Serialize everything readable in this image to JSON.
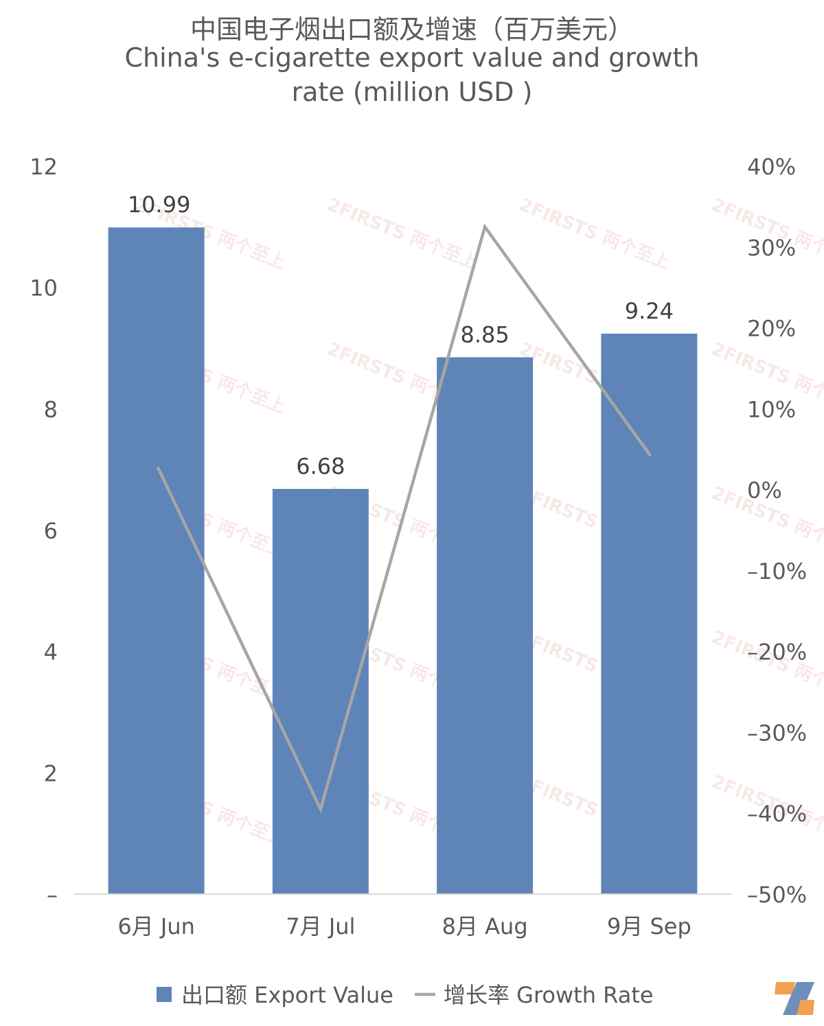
{
  "title_lines": [
    "中国电子烟出口额及增速（百万美元）",
    "China's e-cigarette export value and growth",
    "rate (million USD )"
  ],
  "watermark_text": "2FIRSTS 两个至上",
  "colors": {
    "bar": "#5f84b7",
    "line": "#a6a6a6",
    "text": "#595959",
    "axis": "#d9d9d9"
  },
  "chart_data": {
    "type": "bar+line",
    "categories": [
      "6月 Jun",
      "7月 Jul",
      "8月 Aug",
      "9月 Sep"
    ],
    "series": [
      {
        "name": "出口额 Export Value",
        "type": "bar",
        "axis": "left",
        "values": [
          10.99,
          6.68,
          8.85,
          9.24
        ],
        "labels": [
          "10.99",
          "6.68",
          "8.85",
          "9.24"
        ]
      },
      {
        "name": "增长率 Growth Rate",
        "type": "line",
        "axis": "right",
        "values": [
          2.8,
          -39.5,
          32.5,
          4.2
        ]
      }
    ],
    "y_left": {
      "min": 0,
      "max": 12,
      "step": 2,
      "tick_labels": [
        "–",
        "2",
        "4",
        "6",
        "8",
        "10",
        "12"
      ]
    },
    "y_right": {
      "min": -50,
      "max": 40,
      "step": 10,
      "tick_labels": [
        "–50%",
        "–40%",
        "–30%",
        "–20%",
        "–10%",
        "0%",
        "10%",
        "20%",
        "30%",
        "40%"
      ]
    },
    "legend": {
      "position": "bottom"
    },
    "grid": false
  }
}
